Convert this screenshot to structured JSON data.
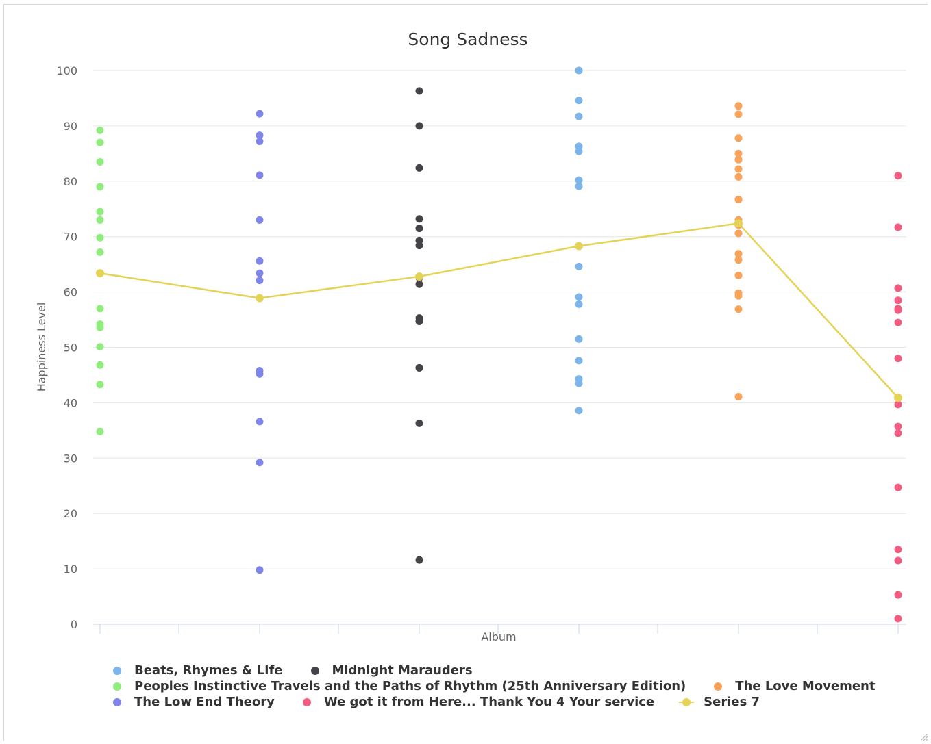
{
  "chart_data": {
    "type": "scatter",
    "title": "Song Sadness",
    "xlabel": "Album",
    "ylabel": "Happiness Level",
    "ylim": [
      0,
      100
    ],
    "yticks": [
      0,
      10,
      20,
      30,
      40,
      50,
      60,
      70,
      80,
      90,
      100
    ],
    "grid": true,
    "legend_position": "bottom",
    "x_categories": 6,
    "series": [
      {
        "name": "Peoples Instinctive Travels and the Paths of Rhythm (25th Anniversary Edition)",
        "color": "#90ed7d",
        "x": 0,
        "values": [
          89.2,
          87.0,
          83.5,
          79.0,
          74.5,
          73.0,
          69.8,
          67.2,
          63.4,
          57.0,
          54.2,
          53.6,
          50.1,
          46.8,
          43.3,
          34.8
        ]
      },
      {
        "name": "The Low End Theory",
        "color": "#8085e9",
        "x": 1,
        "values": [
          92.2,
          88.3,
          87.2,
          81.1,
          73.0,
          65.6,
          63.4,
          62.1,
          45.8,
          45.2,
          36.6,
          29.2,
          9.8
        ]
      },
      {
        "name": "Midnight Marauders",
        "color": "#434348",
        "x": 2,
        "values": [
          96.3,
          90.0,
          82.4,
          73.2,
          71.5,
          69.3,
          68.4,
          62.6,
          61.4,
          55.3,
          54.7,
          46.3,
          36.3,
          11.6
        ]
      },
      {
        "name": "Beats, Rhymes & Life",
        "color": "#7cb5ec",
        "x": 3,
        "values": [
          100.0,
          94.6,
          91.7,
          86.3,
          85.4,
          80.2,
          79.1,
          64.6,
          59.1,
          57.8,
          51.5,
          47.6,
          44.3,
          43.5,
          38.6
        ]
      },
      {
        "name": "The Love Movement",
        "color": "#f7a35c",
        "x": 4,
        "values": [
          93.6,
          92.1,
          87.8,
          85.0,
          83.9,
          82.2,
          80.8,
          76.7,
          73.0,
          72.1,
          70.6,
          66.9,
          65.8,
          63.0,
          59.8,
          59.3,
          56.9,
          41.1
        ]
      },
      {
        "name": "We got it from Here... Thank You 4 Your service",
        "color": "#f15c80",
        "x": 5,
        "values": [
          81.0,
          71.7,
          60.7,
          58.5,
          57.0,
          56.7,
          54.5,
          48.0,
          39.7,
          35.7,
          34.5,
          24.7,
          13.5,
          11.5,
          5.3,
          1.0
        ]
      }
    ],
    "line_series": {
      "name": "Series 7",
      "color": "#e4d354",
      "x": [
        0,
        1,
        2,
        3,
        4,
        5
      ],
      "values": [
        63.4,
        58.9,
        62.8,
        68.3,
        72.4,
        40.9
      ]
    },
    "legend": [
      [
        "Beats, Rhymes & Life",
        "Midnight Marauders"
      ],
      [
        "Peoples Instinctive Travels and the Paths of Rhythm (25th Anniversary Edition)",
        "The Love Movement"
      ],
      [
        "The Low End Theory",
        "We got it from Here... Thank You 4 Your service",
        "Series 7"
      ]
    ]
  }
}
